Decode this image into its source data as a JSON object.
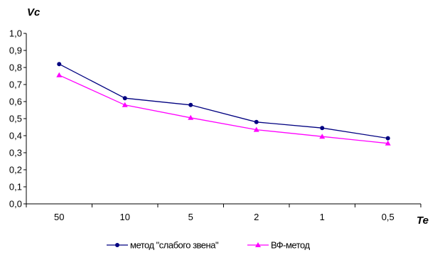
{
  "chart_data": {
    "type": "line",
    "title": "",
    "xlabel": "Te",
    "ylabel": "Vc",
    "categories": [
      "50",
      "10",
      "5",
      "2",
      "1",
      "0,5"
    ],
    "ylim": [
      0,
      1.0
    ],
    "ytick_step": 0.1,
    "ytick_labels": [
      "0,0",
      "0,1",
      "0,2",
      "0,3",
      "0,4",
      "0,5",
      "0,6",
      "0,7",
      "0,8",
      "0,9",
      "1,0"
    ],
    "grid": false,
    "legend_position": "bottom",
    "series": [
      {
        "name": "метод \"слабого звена\"",
        "values": [
          0.82,
          0.62,
          0.58,
          0.48,
          0.445,
          0.385
        ],
        "color": "#000080",
        "marker": "circle"
      },
      {
        "name": "ВФ-метод",
        "values": [
          0.755,
          0.58,
          0.505,
          0.435,
          0.395,
          0.355
        ],
        "color": "#FF00FF",
        "marker": "triangle"
      }
    ]
  }
}
